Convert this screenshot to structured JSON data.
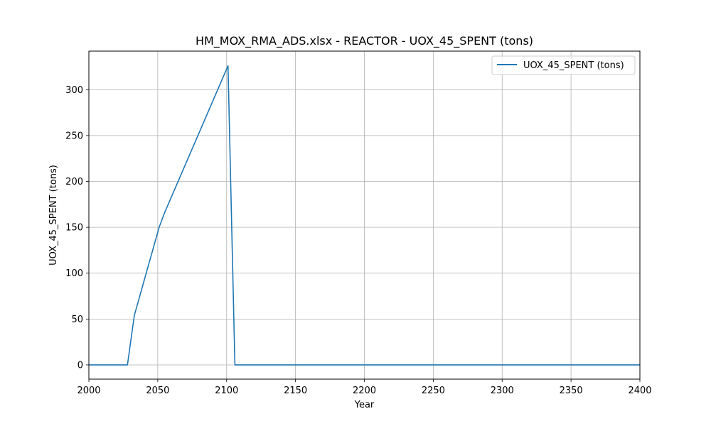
{
  "chart_data": {
    "type": "line",
    "title": "HM_MOX_RMA_ADS.xlsx - REACTOR - UOX_45_SPENT (tons)",
    "xlabel": "Year",
    "ylabel": "UOX_45_SPENT (tons)",
    "xlim": [
      2000,
      2400
    ],
    "ylim": [
      -15.5,
      342
    ],
    "xticks": [
      2000,
      2050,
      2100,
      2150,
      2200,
      2250,
      2300,
      2350,
      2400
    ],
    "yticks": [
      0,
      50,
      100,
      150,
      200,
      250,
      300
    ],
    "grid": true,
    "legend_position": "top-right",
    "series": [
      {
        "name": "UOX_45_SPENT (tons)",
        "color": "#1f77b4",
        "x": [
          2000,
          2028,
          2033,
          2051,
          2055,
          2101,
          2106,
          2400
        ],
        "y": [
          0,
          0,
          54,
          150,
          166,
          326,
          0,
          0
        ]
      }
    ]
  }
}
